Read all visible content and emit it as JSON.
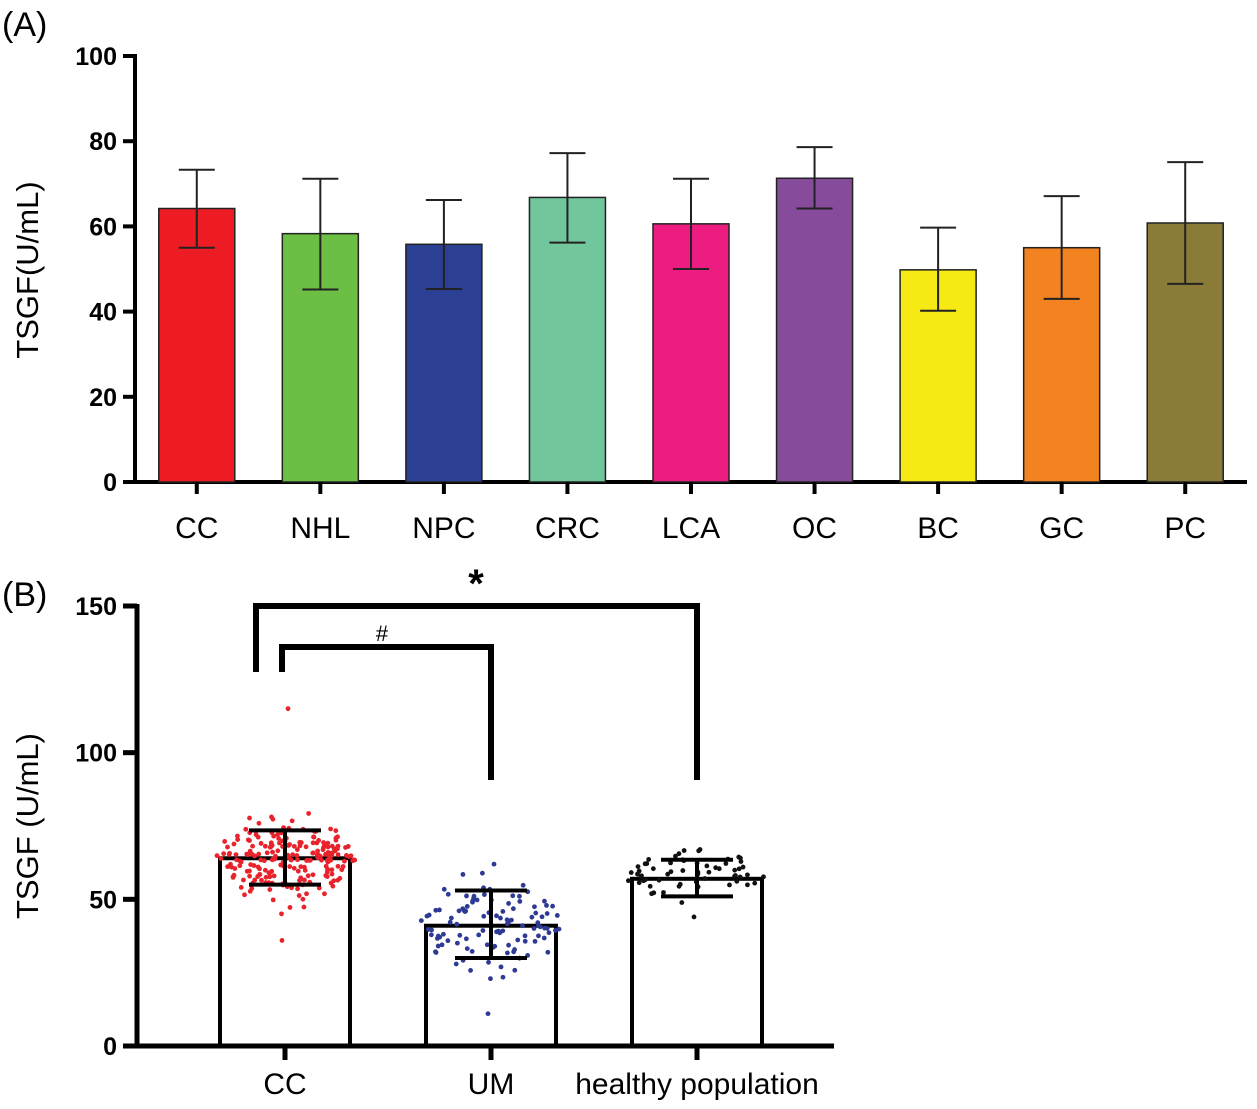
{
  "chart_data": [
    {
      "panel": "(A)",
      "type": "bar",
      "title": "",
      "xlabel": "",
      "ylabel": "TSGF(U/mL)",
      "ylim": [
        0,
        100
      ],
      "yticks": [
        "0",
        "20",
        "40",
        "60",
        "80",
        "100"
      ],
      "categories": [
        "CC",
        "NHL",
        "NPC",
        "CRC",
        "LCA",
        "OC",
        "BC",
        "GC",
        "PC"
      ],
      "values": [
        64.2,
        58.3,
        55.8,
        66.8,
        60.6,
        71.3,
        49.8,
        55.0,
        60.8
      ],
      "error_low": [
        55.0,
        45.2,
        45.3,
        56.2,
        50.0,
        64.2,
        40.2,
        43.0,
        46.5
      ],
      "error_high": [
        73.3,
        71.2,
        66.2,
        77.2,
        71.2,
        78.6,
        59.7,
        67.1,
        75.1
      ],
      "colors": [
        "#ED1C24",
        "#6CBE45",
        "#2B3F93",
        "#72C69B",
        "#EC1C80",
        "#874B9B",
        "#F7EA14",
        "#F38220",
        "#8B7B38"
      ]
    },
    {
      "panel": "(B)",
      "type": "bar",
      "title": "",
      "xlabel": "",
      "ylabel": "TSGF (U/mL)",
      "ylim": [
        0,
        150
      ],
      "yticks": [
        "0",
        "50",
        "100",
        "150"
      ],
      "categories": [
        "CC",
        "UM",
        "healthy population"
      ],
      "values": [
        64.0,
        41.0,
        57.0
      ],
      "error_low": [
        55.0,
        30.0,
        51.0
      ],
      "error_high": [
        73.5,
        53.0,
        63.5
      ],
      "point_colors": [
        "#E8232B",
        "#2E3A94",
        "#111111"
      ],
      "point_ranges": [
        [
          36,
          115
        ],
        [
          11,
          62
        ],
        [
          44,
          67
        ]
      ],
      "point_counts": [
        220,
        110,
        60
      ],
      "comparisons": [
        {
          "from": "CC",
          "to": "healthy population",
          "label": "*"
        },
        {
          "from": "CC",
          "to": "UM",
          "label": "#"
        }
      ]
    }
  ]
}
